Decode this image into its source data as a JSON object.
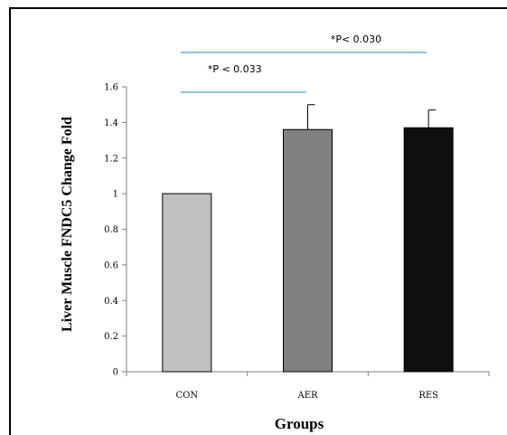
{
  "chart_data": {
    "type": "bar",
    "categories": [
      "CON",
      "AER",
      "RES"
    ],
    "values": [
      1.0,
      1.36,
      1.37
    ],
    "errors": [
      0,
      0.14,
      0.1
    ],
    "bar_colors": [
      "#c0c0c0",
      "#808080",
      "#0f0f0f"
    ],
    "xlabel": "Groups",
    "ylabel": "Liver Muscle FNDC5 Change Fold",
    "ylim": [
      0,
      1.6
    ],
    "yticks": [
      0,
      0.2,
      0.4,
      0.6,
      0.8,
      1,
      1.2,
      1.4,
      1.6
    ],
    "ytick_labels": [
      "0",
      "0.2",
      "0.4",
      "0.6",
      "0.8",
      "1",
      "1.2",
      "1.4",
      "1.6"
    ],
    "grid": false,
    "significance": [
      {
        "from": "CON",
        "to": "AER",
        "label": "*P < 0.033"
      },
      {
        "from": "CON",
        "to": "RES",
        "label": "*P< 0.030"
      }
    ],
    "annotation_color": "#4aa0c8"
  }
}
